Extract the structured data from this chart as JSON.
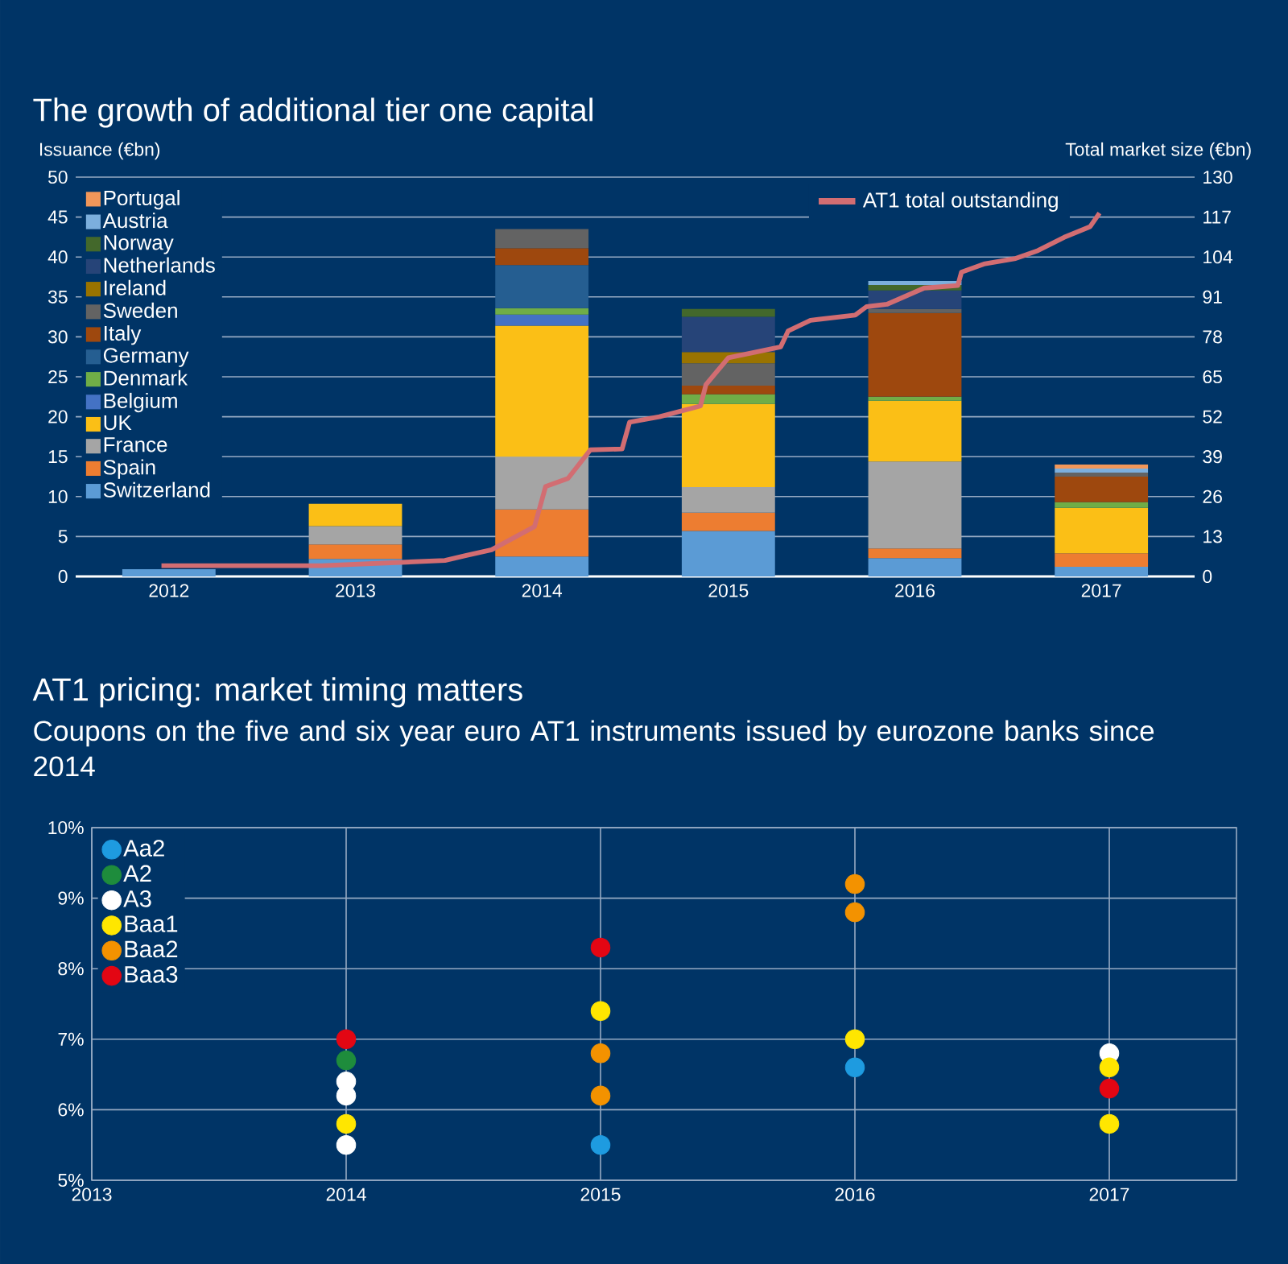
{
  "chart_data": [
    {
      "type": "bar",
      "stacked": true,
      "title": "The growth of additional tier one capital",
      "ylabel": "Issuance (€bn)",
      "y2label": "Total market size (€bn)",
      "x": [
        2012,
        2013,
        2014,
        2015,
        2016,
        2017
      ],
      "xlim": [
        2011.5,
        2017.5
      ],
      "xticks": [
        2012,
        2013,
        2014,
        2015,
        2016,
        2017
      ],
      "ylim": [
        0,
        50
      ],
      "yticks": [
        0,
        5,
        10,
        15,
        20,
        25,
        30,
        35,
        40,
        45,
        50
      ],
      "y2lim": [
        0,
        130
      ],
      "y2ticks": [
        0,
        13,
        26,
        39,
        52,
        65,
        78,
        91,
        104,
        117,
        130
      ],
      "grid": "y",
      "legend": "top left",
      "series": [
        {
          "name": "Switzerland",
          "color": "#5b9bd5",
          "values": [
            0.9,
            2.2,
            2.5,
            5.7,
            2.3,
            1.2
          ]
        },
        {
          "name": "Spain",
          "color": "#ed7d31",
          "values": [
            null,
            1.8,
            5.9,
            2.3,
            1.2,
            1.7
          ]
        },
        {
          "name": "France",
          "color": "#a5a5a5",
          "values": [
            null,
            2.3,
            6.6,
            3.2,
            10.9,
            null
          ]
        },
        {
          "name": "UK",
          "color": "#fbbf16",
          "values": [
            null,
            2.8,
            16.4,
            10.4,
            7.6,
            5.7
          ]
        },
        {
          "name": "Belgium",
          "color": "#4472c4",
          "values": [
            null,
            null,
            1.4,
            null,
            null,
            null
          ]
        },
        {
          "name": "Denmark",
          "color": "#70ad47",
          "values": [
            null,
            null,
            0.8,
            1.2,
            0.5,
            0.7
          ]
        },
        {
          "name": "Germany",
          "color": "#255e91",
          "values": [
            null,
            null,
            5.4,
            null,
            null,
            null
          ]
        },
        {
          "name": "Italy",
          "color": "#9e480e",
          "values": [
            null,
            null,
            2.1,
            1.1,
            10.5,
            3.2
          ]
        },
        {
          "name": "Sweden",
          "color": "#636363",
          "values": [
            null,
            null,
            2.4,
            2.8,
            0.5,
            0.5
          ]
        },
        {
          "name": "Ireland",
          "color": "#997300",
          "values": [
            null,
            null,
            null,
            1.4,
            null,
            null
          ]
        },
        {
          "name": "Netherlands",
          "color": "#264478",
          "values": [
            null,
            null,
            null,
            4.4,
            2.3,
            null
          ]
        },
        {
          "name": "Norway",
          "color": "#43682b",
          "values": [
            null,
            null,
            null,
            1.0,
            0.7,
            null
          ]
        },
        {
          "name": "Austria",
          "color": "#7cafdd",
          "values": [
            null,
            null,
            null,
            null,
            0.5,
            0.5
          ]
        },
        {
          "name": "Portugal",
          "color": "#f1975a",
          "values": [
            null,
            null,
            null,
            null,
            null,
            0.5
          ]
        },
        {
          "name": "AT1 total outstanding",
          "type": "line",
          "axis": "y2",
          "color": "#d26d72",
          "x": [
            2011.96,
            2012.82,
            2013.48,
            2013.59,
            2013.73,
            2013.96,
            2014.02,
            2014.14,
            2014.26,
            2014.43,
            2014.47,
            2014.63,
            2014.85,
            2014.88,
            2015.0,
            2015.28,
            2015.32,
            2015.44,
            2015.68,
            2015.74,
            2015.85,
            2016.05,
            2016.23,
            2016.25,
            2016.37,
            2016.54,
            2016.66,
            2016.8,
            2016.94,
            2016.99
          ],
          "values": [
            3.5,
            3.5,
            5.2,
            6.8,
            8.7,
            16.2,
            29.3,
            31.9,
            41.2,
            41.5,
            50.2,
            52.0,
            55.5,
            62.5,
            71.2,
            74.7,
            79.9,
            83.4,
            85.1,
            87.8,
            88.6,
            93.9,
            94.7,
            99.1,
            101.7,
            103.5,
            106.1,
            110.4,
            113.9,
            118.3
          ]
        }
      ]
    },
    {
      "type": "scatter",
      "title": "AT1 pricing: market timing matters",
      "subtitle": "Coupons on the five and six year euro AT1 instruments issued by eurozone banks since 2014",
      "xlim": [
        2013,
        2017.5
      ],
      "xticks": [
        2013,
        2014,
        2015,
        2016,
        2017
      ],
      "ylim": [
        5,
        10
      ],
      "yticks": [
        {
          "value": 5,
          "label": "5%"
        },
        {
          "value": 6,
          "label": "6%"
        },
        {
          "value": 7,
          "label": "7%"
        },
        {
          "value": 8,
          "label": "8%"
        },
        {
          "value": 9,
          "label": "9%"
        },
        {
          "value": 10,
          "label": "10%"
        }
      ],
      "grid": true,
      "legend": "top left",
      "marker": "circle",
      "series": [
        {
          "name": "Aa2",
          "color": "#1e9be0",
          "x": [
            2015,
            2016
          ],
          "values": [
            5.5,
            6.6
          ]
        },
        {
          "name": "A2",
          "color": "#1e8c3c",
          "x": [
            2014
          ],
          "values": [
            6.7
          ]
        },
        {
          "name": "A3",
          "color": "#ffffff",
          "x": [
            2014,
            2014,
            2014,
            2017
          ],
          "values": [
            6.4,
            6.2,
            5.5,
            6.8
          ]
        },
        {
          "name": "Baa1",
          "color": "#ffe600",
          "x": [
            2014,
            2015,
            2016,
            2017,
            2017
          ],
          "values": [
            5.8,
            7.4,
            7.0,
            6.6,
            5.8
          ]
        },
        {
          "name": "Baa2",
          "color": "#f39200",
          "x": [
            2015,
            2015,
            2016,
            2016
          ],
          "values": [
            6.8,
            6.2,
            9.2,
            8.8
          ]
        },
        {
          "name": "Baa3",
          "color": "#e30613",
          "x": [
            2014,
            2015,
            2017
          ],
          "values": [
            7.0,
            8.3,
            6.3
          ]
        }
      ]
    }
  ]
}
